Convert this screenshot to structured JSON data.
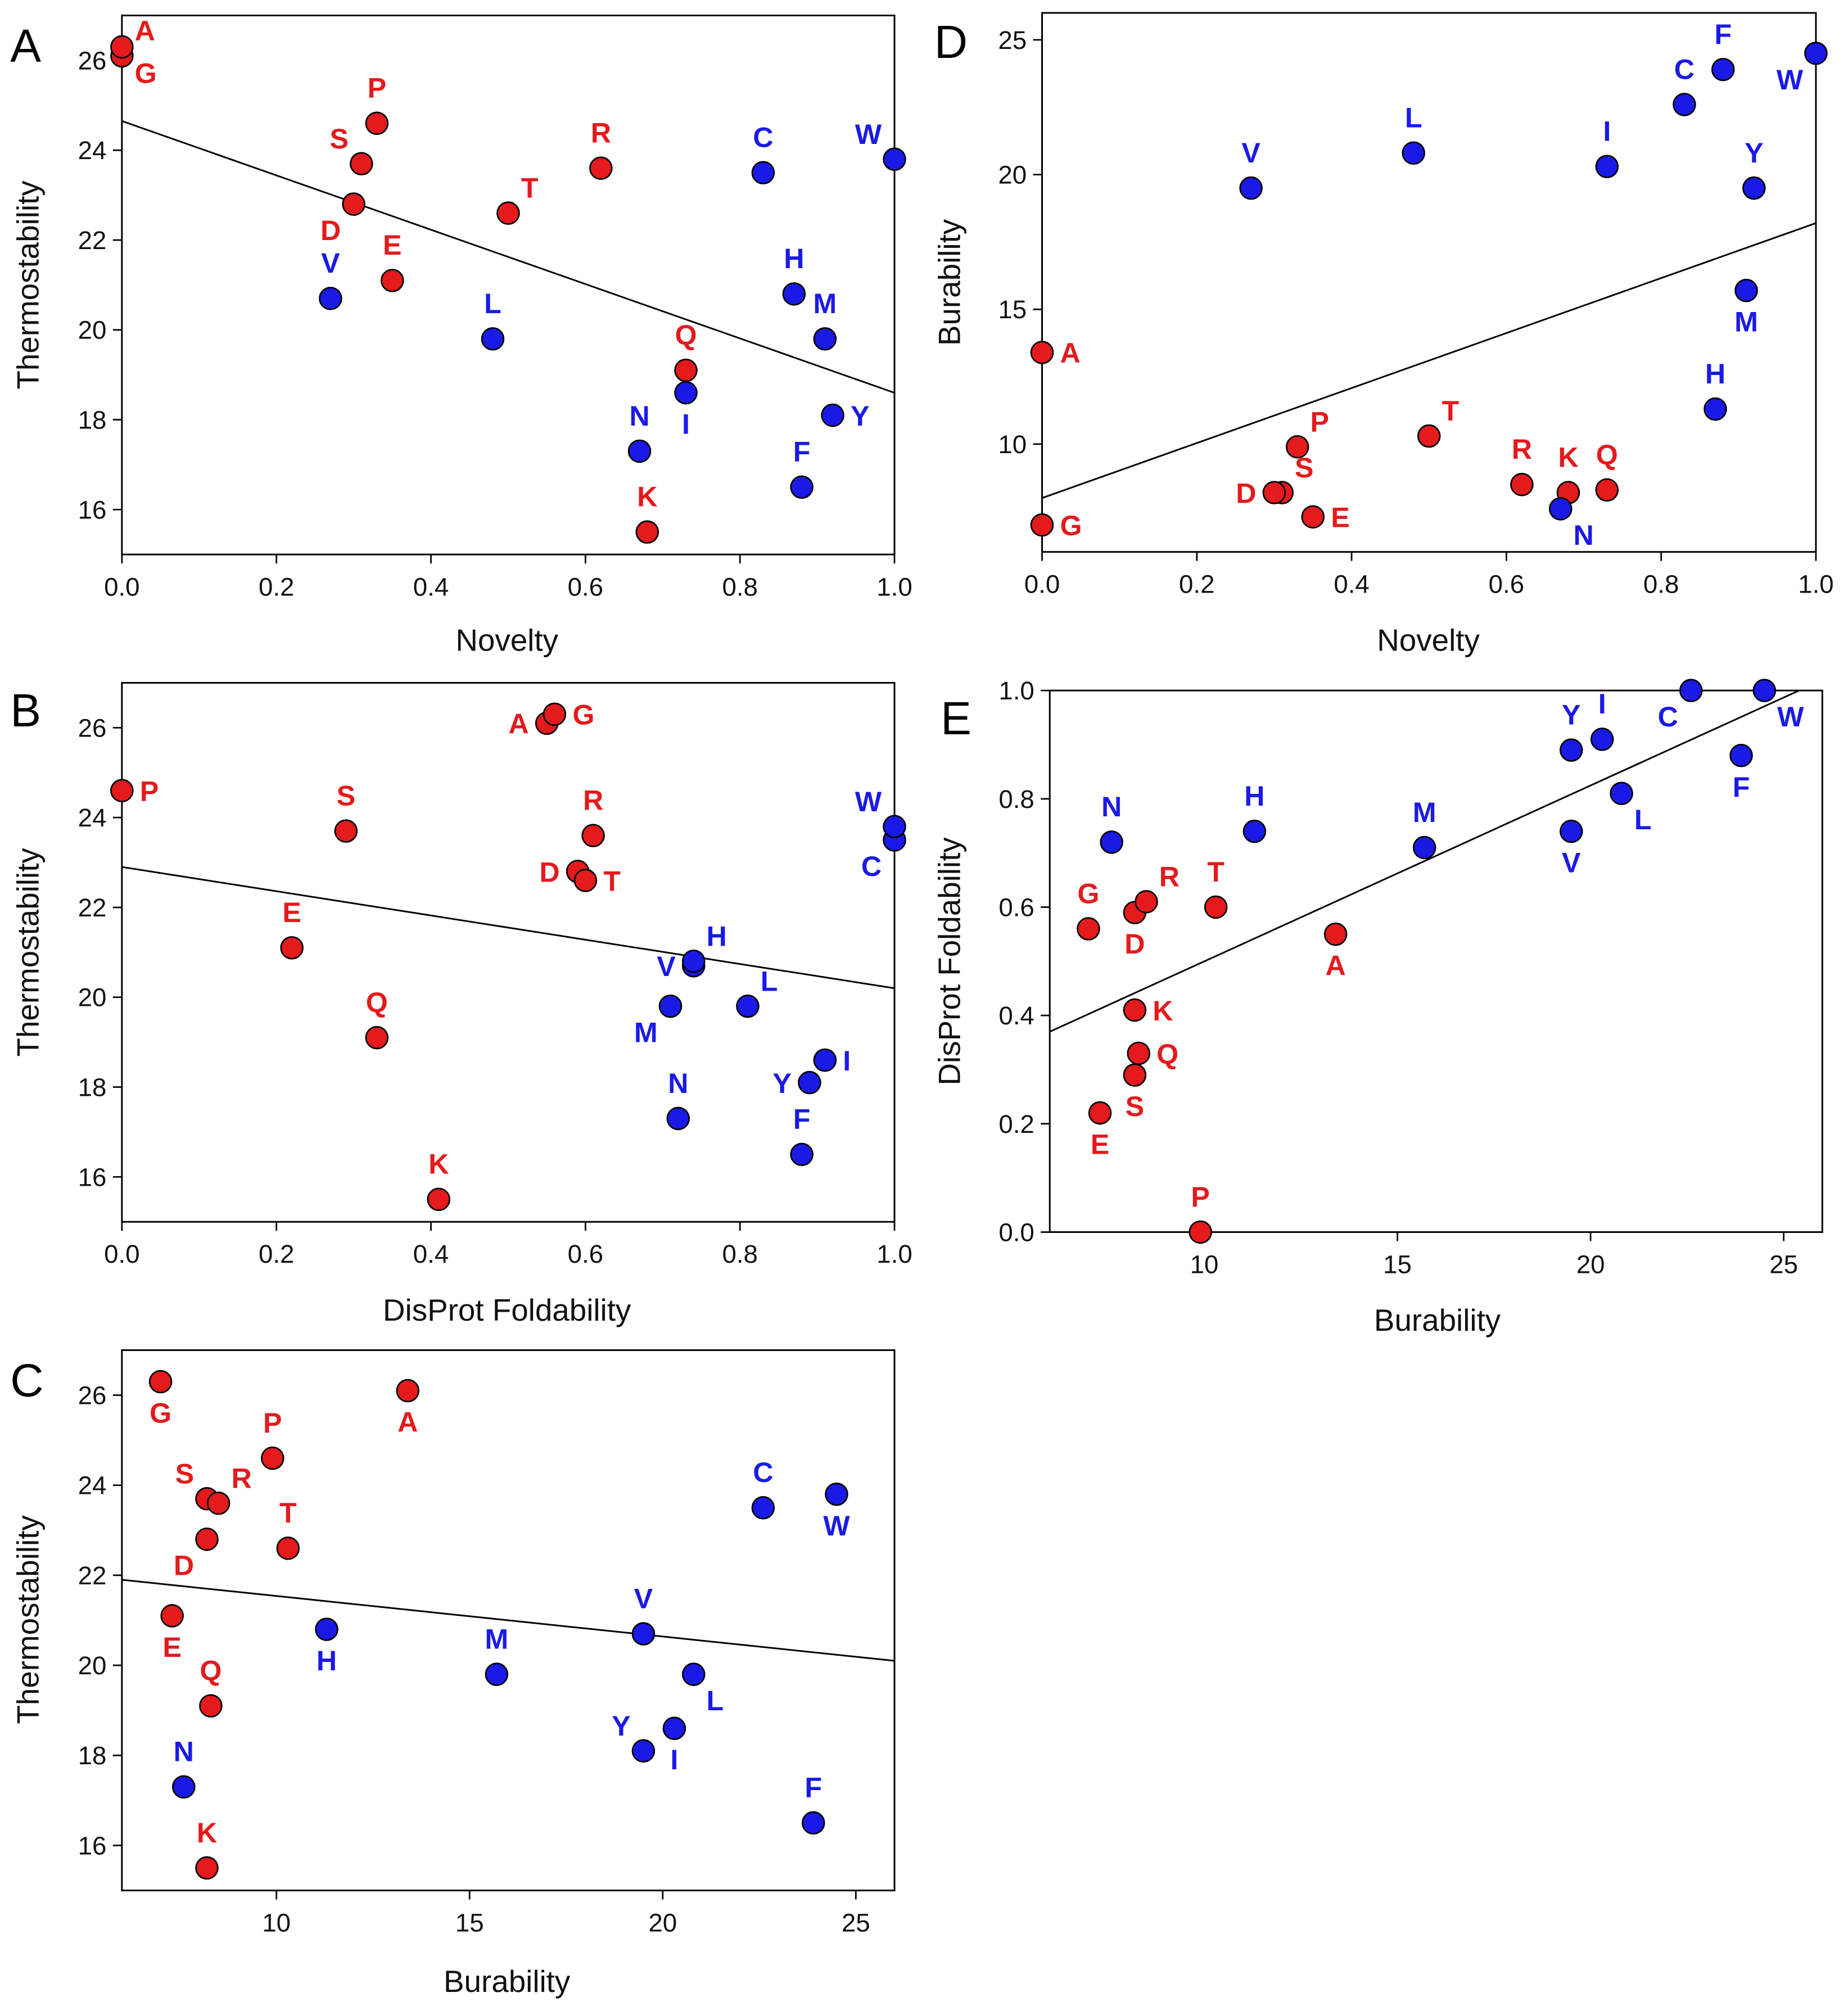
{
  "colors": {
    "red": "#e41a1c",
    "blue": "#1a1ae6",
    "line": "#000000"
  },
  "residues": [
    {
      "label": "A",
      "group": "red",
      "novelty": 0.0,
      "thermostability": 26.1,
      "burability": 13.4,
      "foldability": 0.55
    },
    {
      "label": "G",
      "group": "red",
      "novelty": 0.0,
      "thermostability": 26.3,
      "burability": 7.0,
      "foldability": 0.56
    },
    {
      "label": "P",
      "group": "red",
      "novelty": 0.33,
      "thermostability": 24.6,
      "burability": 9.9,
      "foldability": 0.0
    },
    {
      "label": "S",
      "group": "red",
      "novelty": 0.31,
      "thermostability": 23.7,
      "burability": 8.2,
      "foldability": 0.29
    },
    {
      "label": "D",
      "group": "red",
      "novelty": 0.3,
      "thermostability": 22.8,
      "burability": 8.2,
      "foldability": 0.59
    },
    {
      "label": "E",
      "group": "red",
      "novelty": 0.35,
      "thermostability": 21.1,
      "burability": 7.3,
      "foldability": 0.22
    },
    {
      "label": "T",
      "group": "red",
      "novelty": 0.5,
      "thermostability": 22.6,
      "burability": 10.3,
      "foldability": 0.6
    },
    {
      "label": "R",
      "group": "red",
      "novelty": 0.62,
      "thermostability": 23.6,
      "burability": 8.5,
      "foldability": 0.61
    },
    {
      "label": "Q",
      "group": "red",
      "novelty": 0.73,
      "thermostability": 19.1,
      "burability": 8.3,
      "foldability": 0.33
    },
    {
      "label": "K",
      "group": "red",
      "novelty": 0.68,
      "thermostability": 15.5,
      "burability": 8.2,
      "foldability": 0.41
    },
    {
      "label": "V",
      "group": "blue",
      "novelty": 0.27,
      "thermostability": 20.7,
      "burability": 19.5,
      "foldability": 0.74
    },
    {
      "label": "L",
      "group": "blue",
      "novelty": 0.48,
      "thermostability": 19.8,
      "burability": 20.8,
      "foldability": 0.81
    },
    {
      "label": "C",
      "group": "blue",
      "novelty": 0.83,
      "thermostability": 23.5,
      "burability": 22.6,
      "foldability": 1.0
    },
    {
      "label": "W",
      "group": "blue",
      "novelty": 1.0,
      "thermostability": 23.8,
      "burability": 24.5,
      "foldability": 1.0
    },
    {
      "label": "H",
      "group": "blue",
      "novelty": 0.87,
      "thermostability": 20.8,
      "burability": 11.3,
      "foldability": 0.74
    },
    {
      "label": "M",
      "group": "blue",
      "novelty": 0.91,
      "thermostability": 19.8,
      "burability": 15.7,
      "foldability": 0.71
    },
    {
      "label": "I",
      "group": "blue",
      "novelty": 0.73,
      "thermostability": 18.6,
      "burability": 20.3,
      "foldability": 0.91
    },
    {
      "label": "Y",
      "group": "blue",
      "novelty": 0.92,
      "thermostability": 18.1,
      "burability": 19.5,
      "foldability": 0.89
    },
    {
      "label": "F",
      "group": "blue",
      "novelty": 0.88,
      "thermostability": 16.5,
      "burability": 23.9,
      "foldability": 0.88
    },
    {
      "label": "N",
      "group": "blue",
      "novelty": 0.67,
      "thermostability": 17.3,
      "burability": 7.6,
      "foldability": 0.72
    }
  ],
  "chart_data": [
    {
      "panel": "A",
      "type": "scatter",
      "x_field": "novelty",
      "y_field": "thermostability",
      "xlabel": "Novelty",
      "ylabel": "Thermostability",
      "xlim": [
        0,
        1
      ],
      "ylim": [
        15,
        27
      ],
      "xticks": [
        "0.0",
        "0.2",
        "0.4",
        "0.6",
        "0.8",
        "1.0"
      ],
      "yticks": [
        "16",
        "18",
        "20",
        "22",
        "24",
        "26"
      ],
      "fit": [
        [
          0,
          24.65
        ],
        [
          1,
          18.6
        ]
      ]
    },
    {
      "panel": "B",
      "type": "scatter",
      "x_field": "foldability",
      "y_field": "thermostability",
      "xlabel": "DisProt Foldability",
      "ylabel": "Thermostability",
      "xlim": [
        0,
        1
      ],
      "ylim": [
        15,
        27
      ],
      "xticks": [
        "0.0",
        "0.2",
        "0.4",
        "0.6",
        "0.8",
        "1.0"
      ],
      "yticks": [
        "16",
        "18",
        "20",
        "22",
        "24",
        "26"
      ],
      "fit": [
        [
          0,
          22.9
        ],
        [
          1,
          20.2
        ]
      ]
    },
    {
      "panel": "C",
      "type": "scatter",
      "x_field": "burability",
      "y_field": "thermostability",
      "xlabel": "Burability",
      "ylabel": "Thermostability",
      "xlim": [
        6,
        26
      ],
      "ylim": [
        15,
        27
      ],
      "xticks": [
        "10",
        "15",
        "20",
        "25"
      ],
      "yticks": [
        "16",
        "18",
        "20",
        "22",
        "24",
        "26"
      ],
      "fit": [
        [
          6,
          21.9
        ],
        [
          26,
          20.1
        ]
      ]
    },
    {
      "panel": "D",
      "type": "scatter",
      "x_field": "novelty",
      "y_field": "burability",
      "xlabel": "Novelty",
      "ylabel": "Burability",
      "xlim": [
        0,
        1
      ],
      "ylim": [
        6,
        26
      ],
      "xticks": [
        "0.0",
        "0.2",
        "0.4",
        "0.6",
        "0.8",
        "1.0"
      ],
      "yticks": [
        "10",
        "15",
        "20",
        "25"
      ],
      "fit": [
        [
          0,
          8.0
        ],
        [
          1,
          18.2
        ]
      ]
    },
    {
      "panel": "E",
      "type": "scatter",
      "x_field": "burability",
      "y_field": "foldability",
      "xlabel": "Burability",
      "ylabel": "DisProt Foldability",
      "xlim": [
        6,
        26
      ],
      "ylim": [
        0,
        1
      ],
      "xticks": [
        "10",
        "15",
        "20",
        "25"
      ],
      "yticks": [
        "0.0",
        "0.2",
        "0.4",
        "0.6",
        "0.8",
        "1.0"
      ],
      "fit": [
        [
          6,
          0.37
        ],
        [
          25.4,
          1.0
        ]
      ]
    }
  ]
}
